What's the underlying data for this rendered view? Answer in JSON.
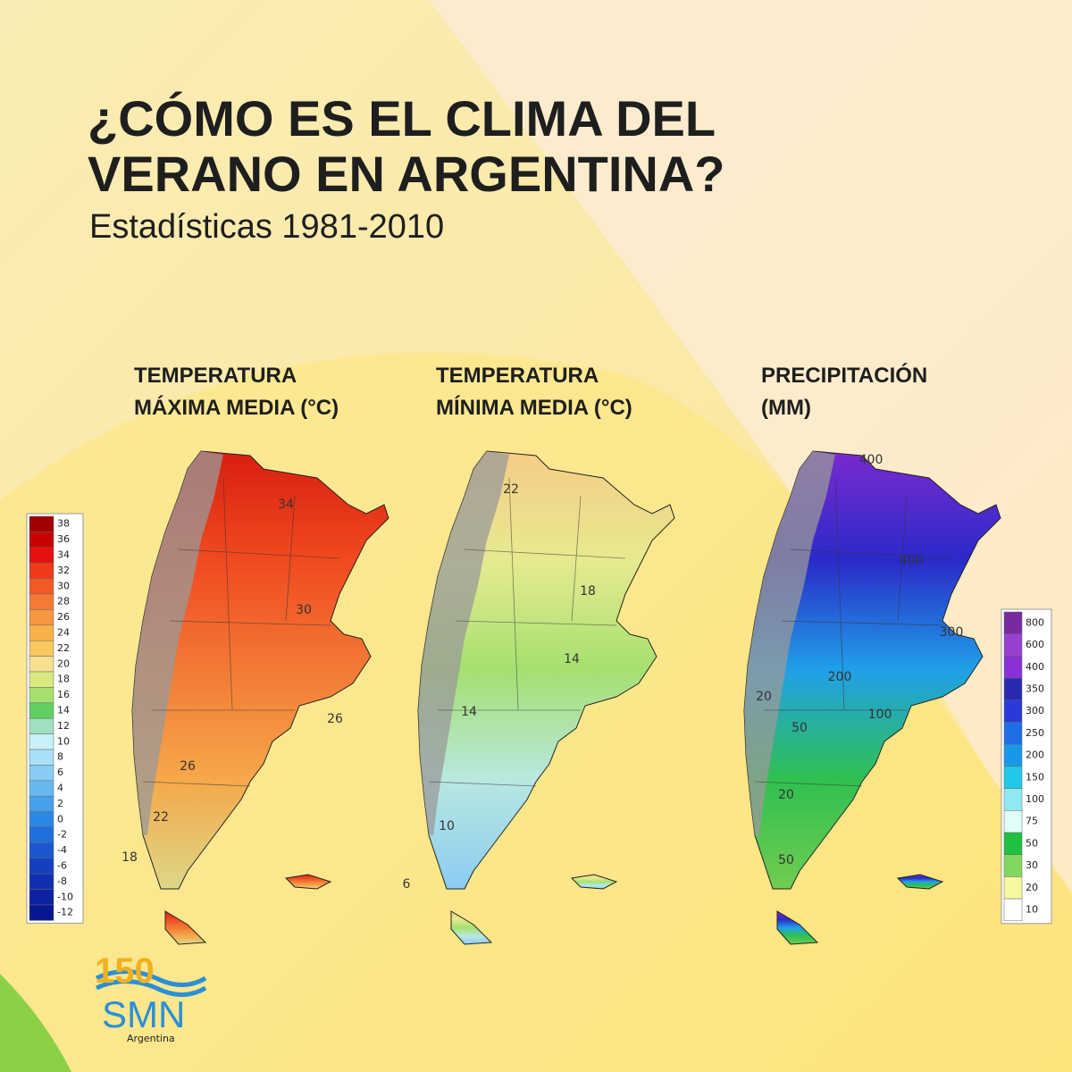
{
  "title": [
    "¿CÓMO ES EL CLIMA DEL",
    "VERANO EN ARGENTINA?"
  ],
  "subtitle": "Estadísticas 1981-2010",
  "maps": [
    {
      "title": [
        "TEMPERATURA",
        "MÁXIMA MEDIA (°C)"
      ],
      "contour_labels": [
        "34",
        "30",
        "26",
        "26",
        "22",
        "18"
      ],
      "fill": [
        "#d81e10",
        "#f04a20",
        "#f27a35",
        "#f6a84a",
        "#dcd888"
      ]
    },
    {
      "title": [
        "TEMPERATURA",
        "MÍNIMA MEDIA (°C)"
      ],
      "contour_labels": [
        "22",
        "18",
        "14",
        "14",
        "10",
        "6"
      ],
      "fill": [
        "#f6cc86",
        "#e6ea90",
        "#a6e070",
        "#b8e8e0",
        "#8cccf2"
      ]
    },
    {
      "title": [
        "PRECIPITACIÓN",
        "(MM)"
      ],
      "contour_labels": [
        "400",
        "400",
        "300",
        "200",
        "100",
        "20",
        "50",
        "20",
        "50"
      ],
      "fill": [
        "#7a2ad0",
        "#2a2ac8",
        "#20a0e8",
        "#30c050",
        "#70cc50"
      ]
    }
  ],
  "temperature_legend": {
    "labels": [
      "38",
      "36",
      "34",
      "32",
      "30",
      "28",
      "26",
      "24",
      "22",
      "20",
      "18",
      "16",
      "14",
      "12",
      "10",
      "8",
      "6",
      "4",
      "2",
      "0",
      "-2",
      "-4",
      "-6",
      "-8",
      "-10",
      "-12"
    ],
    "colors": [
      "#a00000",
      "#c80000",
      "#e61010",
      "#f03a1a",
      "#f25a25",
      "#f47a35",
      "#f6963f",
      "#f8b24a",
      "#f8c860",
      "#f5e090",
      "#d8ea80",
      "#a8e070",
      "#60d060",
      "#a0e0c0",
      "#c8f0f8",
      "#a8e0f8",
      "#88ccf5",
      "#68b8f0",
      "#48a0ec",
      "#2a88e6",
      "#2070dc",
      "#1a58d0",
      "#1440c0",
      "#1030b0",
      "#0c22a0",
      "#081890"
    ]
  },
  "precipitation_legend": {
    "labels": [
      "800",
      "600",
      "400",
      "350",
      "300",
      "250",
      "200",
      "150",
      "100",
      "75",
      "50",
      "30",
      "20",
      "10"
    ],
    "colors": [
      "#7a2aa0",
      "#9a40d0",
      "#8a30d8",
      "#2828b0",
      "#2a3ad8",
      "#1e6ee8",
      "#1a98e8",
      "#20c8e8",
      "#90e8f0",
      "#e0fff8",
      "#20c040",
      "#80d860",
      "#f8f8a0",
      "#ffffff"
    ]
  },
  "logo": {
    "number": "150",
    "name": "SMN",
    "country": "Argentina"
  }
}
